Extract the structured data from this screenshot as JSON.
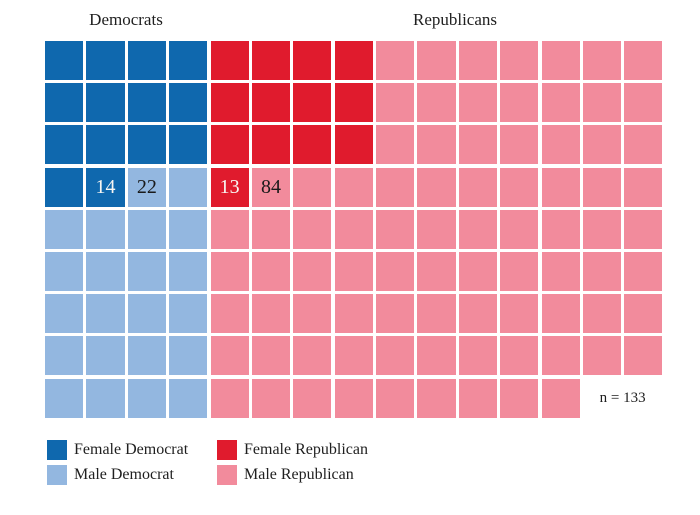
{
  "headers": {
    "democrats": "Democrats",
    "republicans": "Republicans"
  },
  "n_label": "n = 133",
  "colors": {
    "female_democrat": "#0f68ae",
    "male_democrat": "#93b7e0",
    "female_republican": "#e01b2d",
    "male_republican": "#f28b9c"
  },
  "legend": {
    "items": [
      {
        "key": "female_democrat",
        "label": "Female Democrat"
      },
      {
        "key": "female_republican",
        "label": "Female Republican"
      },
      {
        "key": "male_democrat",
        "label": "Male Democrat"
      },
      {
        "key": "male_republican",
        "label": "Male Republican"
      }
    ]
  },
  "waffle": {
    "rows": 9,
    "cols": 15,
    "cell_codes": {
      "d": "female_democrat",
      "b": "male_democrat",
      "r": "female_republican",
      "p": "male_republican",
      ".": "empty"
    },
    "pattern": [
      "ddddrrrrppppppp",
      "ddddrrrrppppppp",
      "ddddrrrrppppppp",
      "ddbbrpppppppppp",
      "bbbbppppppppppp",
      "bbbbppppppppppp",
      "bbbbppppppppppp",
      "bbbbppppppppppp",
      "bbbbppppppppp.."
    ],
    "cell_labels": [
      {
        "row": 4,
        "col": 2,
        "text": "14",
        "style": "light"
      },
      {
        "row": 4,
        "col": 3,
        "text": "22",
        "style": "dark"
      },
      {
        "row": 4,
        "col": 5,
        "text": "13",
        "style": "light"
      },
      {
        "row": 4,
        "col": 6,
        "text": "84",
        "style": "dark"
      }
    ]
  },
  "chart_data": {
    "type": "waffle",
    "categories": [
      "Female Democrat",
      "Male Democrat",
      "Female Republican",
      "Male Republican"
    ],
    "values": [
      14,
      22,
      13,
      84
    ],
    "series_colors": [
      "#0f68ae",
      "#93b7e0",
      "#e01b2d",
      "#f28b9c"
    ],
    "groups": [
      {
        "name": "Democrats",
        "total": 36
      },
      {
        "name": "Republicans",
        "total": 97
      }
    ],
    "n": 133,
    "annotation": "n = 133",
    "grid": {
      "rows": 9,
      "cols": 15,
      "missing_last_row_cells": 2
    },
    "legend_position": "bottom-left",
    "legend_entries": [
      "Female Democrat",
      "Male Democrat",
      "Female Republican",
      "Male Republican"
    ]
  }
}
